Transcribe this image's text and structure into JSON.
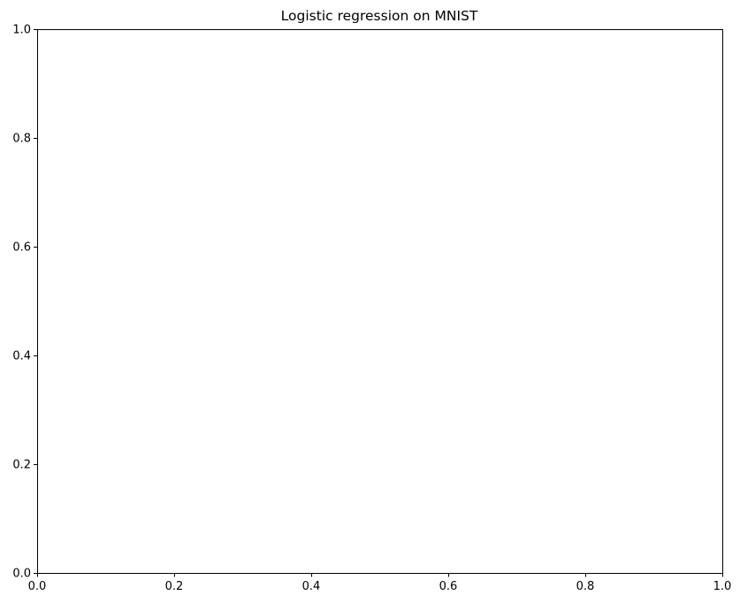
{
  "chart_data": {
    "type": "line",
    "title": "Logistic regression on MNIST",
    "xlabel": "",
    "ylabel": "",
    "xlim": [
      0,
      1
    ],
    "ylim": [
      0,
      1
    ],
    "grid": false,
    "series": [],
    "x_ticks": [
      {
        "value": 0.0,
        "label": "0.0"
      },
      {
        "value": 0.2,
        "label": "0.2"
      },
      {
        "value": 0.4,
        "label": "0.4"
      },
      {
        "value": 0.6,
        "label": "0.6"
      },
      {
        "value": 0.8,
        "label": "0.8"
      },
      {
        "value": 1.0,
        "label": "1.0"
      }
    ],
    "y_ticks": [
      {
        "value": 0.0,
        "label": "0.0"
      },
      {
        "value": 0.2,
        "label": "0.2"
      },
      {
        "value": 0.4,
        "label": "0.4"
      },
      {
        "value": 0.6,
        "label": "0.6"
      },
      {
        "value": 0.8,
        "label": "0.8"
      },
      {
        "value": 1.0,
        "label": "1.0"
      }
    ]
  }
}
